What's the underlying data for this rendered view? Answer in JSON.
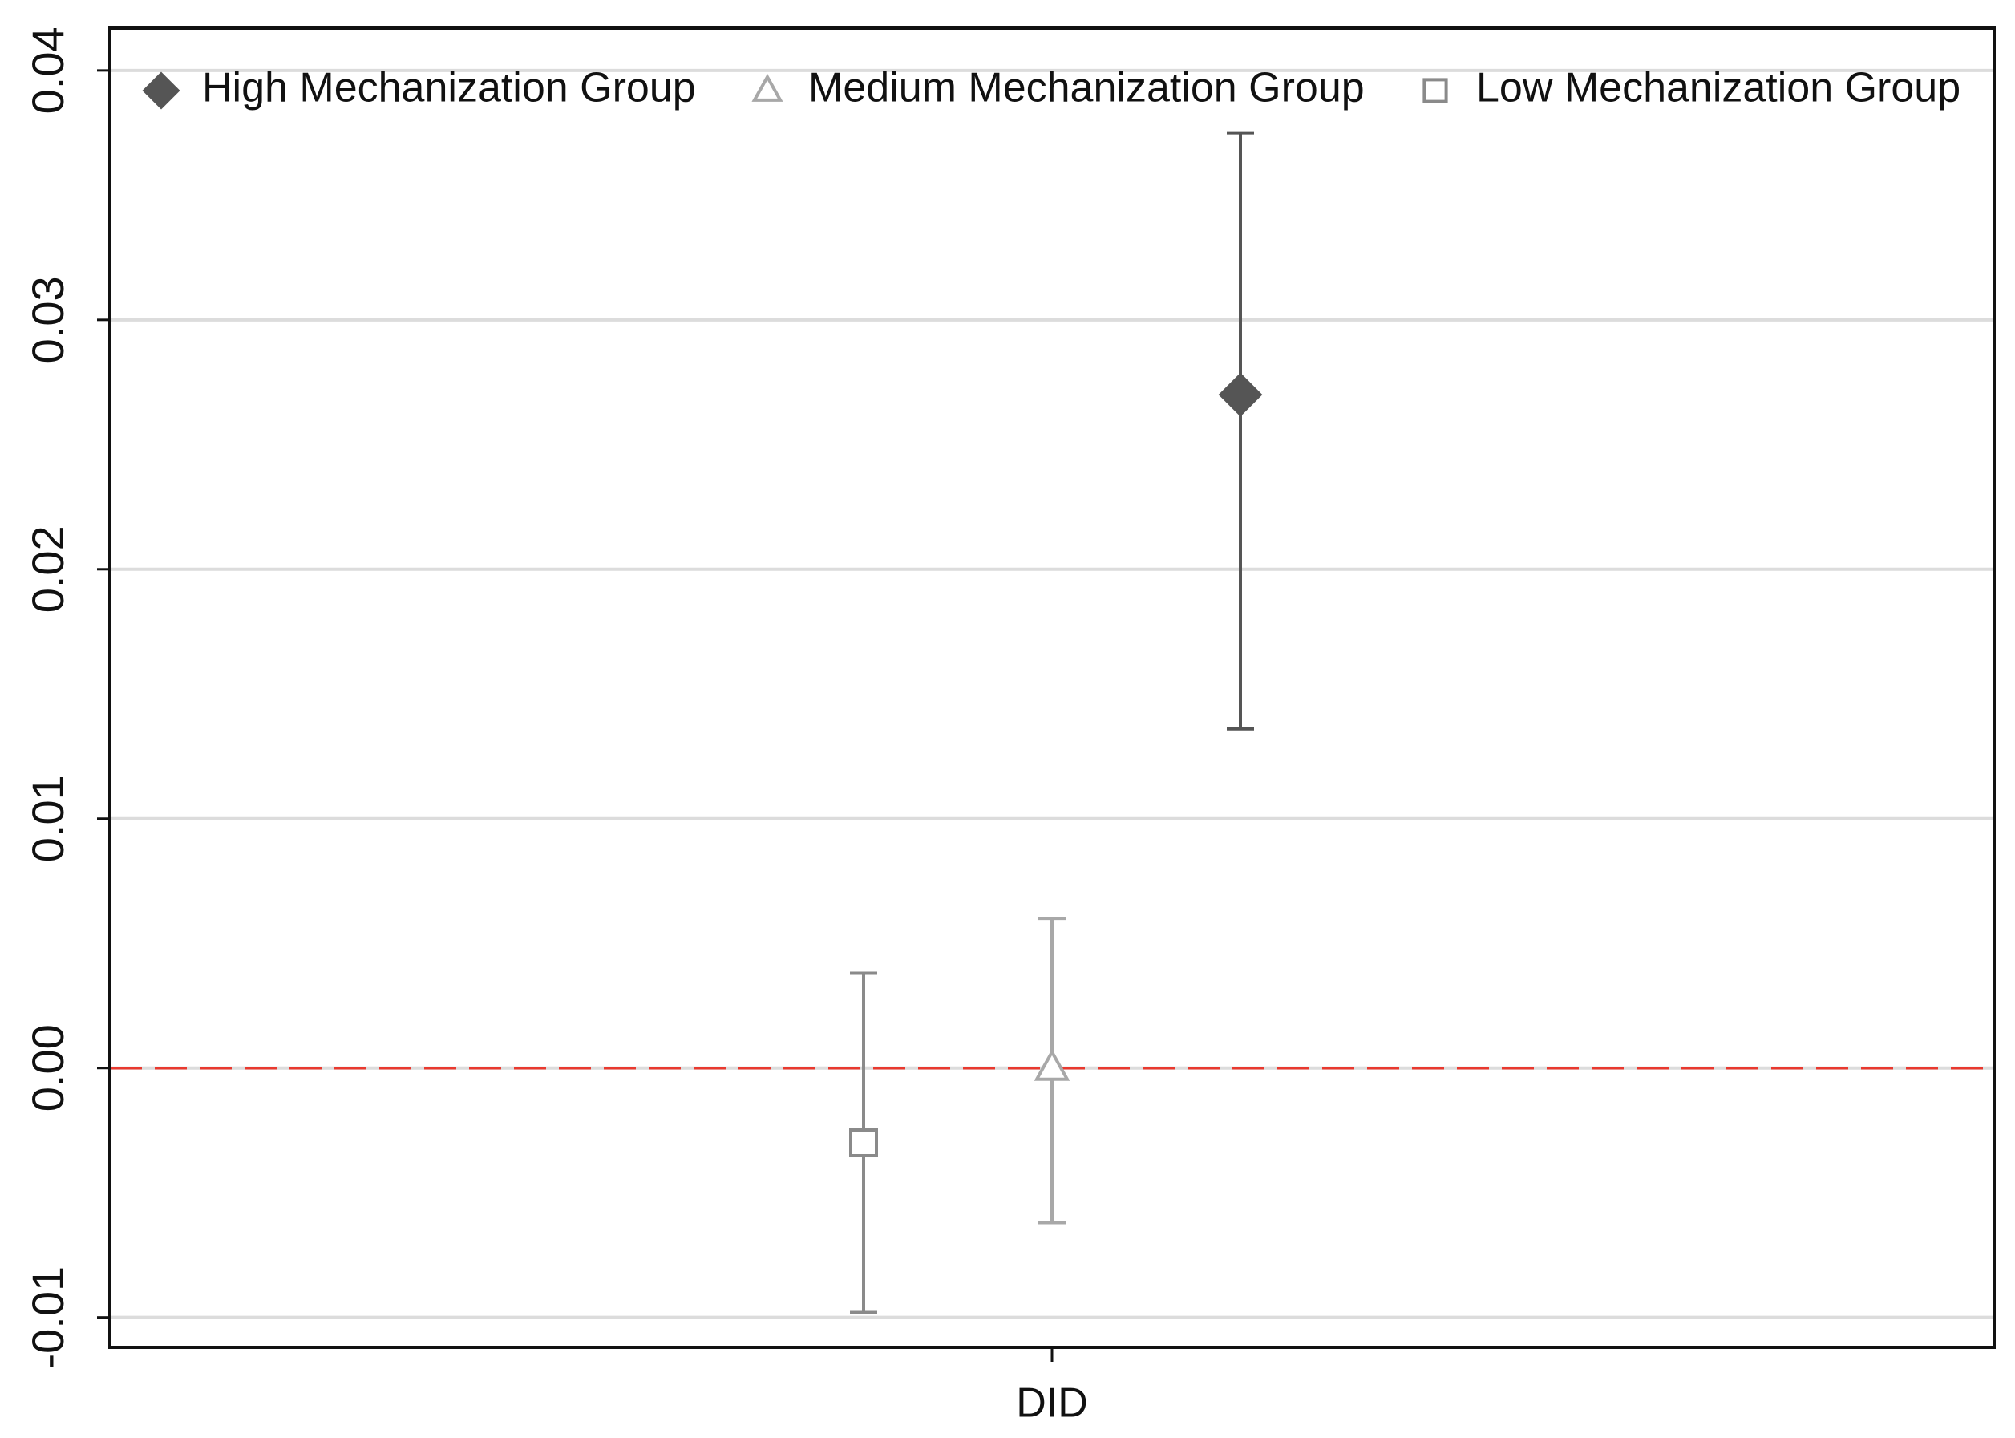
{
  "chart_data": {
    "type": "errorbar",
    "categories": [
      "DID"
    ],
    "ylim": [
      -0.0112,
      0.0417
    ],
    "yticks": [
      -0.01,
      {
        "value": 0,
        "label": "0.00"
      },
      0.01,
      0.02,
      0.03,
      0.04
    ],
    "grid": true,
    "legend": "top",
    "reference_line": {
      "value": 0,
      "color": "#e8392f",
      "style": "dashed"
    },
    "series": [
      {
        "name": "High Mechanization Group",
        "color": "#555555",
        "marker": "diamond",
        "filled": true,
        "values": [
          0.027
        ],
        "lower": [
          0.0136
        ],
        "upper": [
          0.0375
        ]
      },
      {
        "name": "Medium Mechanization Group",
        "color": "#a8a8a8",
        "marker": "triangle",
        "filled": false,
        "values": [
          0.0
        ],
        "lower": [
          -0.0062
        ],
        "upper": [
          0.006
        ]
      },
      {
        "name": "Low Mechanization Group",
        "color": "#8a8a8a",
        "marker": "square",
        "filled": false,
        "values": [
          -0.003
        ],
        "lower": [
          -0.0098
        ],
        "upper": [
          0.0038
        ]
      }
    ]
  }
}
